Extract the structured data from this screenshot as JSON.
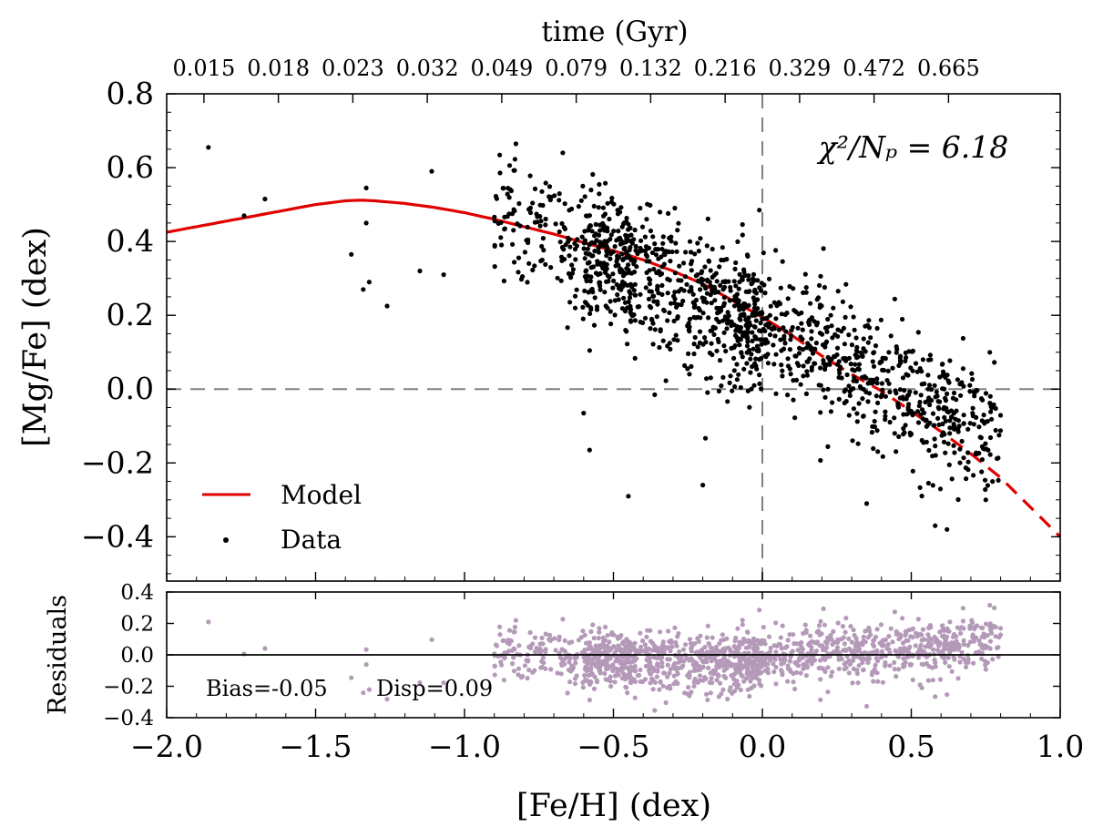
{
  "chart_data": [
    {
      "name": "main-panel",
      "type": "scatter",
      "title": "",
      "xlabel": "[Fe/H] (dex)",
      "ylabel": "[Mg/Fe] (dex)",
      "xlim": [
        -2.0,
        1.0
      ],
      "ylim": [
        -0.52,
        0.8
      ],
      "x_ticks": [
        -2.0,
        -1.5,
        -1.0,
        -0.5,
        0.0,
        0.5,
        1.0
      ],
      "x_tick_labels": [
        "−2.0",
        "−1.5",
        "−1.0",
        "−0.5",
        "0.0",
        "0.5",
        "1.0"
      ],
      "y_ticks": [
        -0.4,
        -0.2,
        0.0,
        0.2,
        0.4,
        0.6,
        0.8
      ],
      "y_tick_labels": [
        "−0.4",
        "−0.2",
        "0.0",
        "0.2",
        "0.4",
        "0.6",
        "0.8"
      ],
      "top_axis": {
        "label": "time (Gyr)",
        "tick_positions_feh": [
          -1.875,
          -1.625,
          -1.375,
          -1.125,
          -0.875,
          -0.625,
          -0.375,
          -0.125,
          0.125,
          0.375,
          0.625
        ],
        "tick_labels": [
          "0.015",
          "0.018",
          "0.023",
          "0.032",
          "0.049",
          "0.079",
          "0.132",
          "0.216",
          "0.329",
          "0.472",
          "0.665"
        ]
      },
      "annotation": "χ²/Nₚ = 6.18",
      "reference_lines": {
        "x": 0.0,
        "y": 0.0,
        "style": "dashed",
        "color": "#808080"
      },
      "legend": {
        "position": "bottom-left",
        "entries": [
          {
            "label": "Model",
            "color": "#e00000",
            "marker": "line"
          },
          {
            "label": "Data",
            "color": "#000000",
            "marker": "dot"
          }
        ]
      },
      "series": [
        {
          "name": "Model",
          "color": "#e00000",
          "solid_until_feh": 0.1,
          "x": [
            -2.0,
            -1.9,
            -1.8,
            -1.7,
            -1.6,
            -1.5,
            -1.4,
            -1.35,
            -1.3,
            -1.2,
            -1.1,
            -1.0,
            -0.9,
            -0.8,
            -0.7,
            -0.6,
            -0.5,
            -0.4,
            -0.3,
            -0.2,
            -0.1,
            0.0,
            0.1,
            0.2,
            0.3,
            0.4,
            0.5,
            0.6,
            0.7,
            0.8,
            0.9,
            1.0
          ],
          "y": [
            0.425,
            0.44,
            0.455,
            0.47,
            0.485,
            0.5,
            0.51,
            0.512,
            0.51,
            0.503,
            0.492,
            0.478,
            0.46,
            0.44,
            0.42,
            0.397,
            0.375,
            0.35,
            0.32,
            0.285,
            0.24,
            0.195,
            0.145,
            0.09,
            0.04,
            -0.005,
            -0.06,
            -0.115,
            -0.175,
            -0.24,
            -0.32,
            -0.4
          ]
        },
        {
          "name": "Data",
          "color": "#000000",
          "outliers": {
            "x": [
              -1.86,
              -1.67,
              -1.74,
              -1.38,
              -1.33,
              -1.33,
              -1.34,
              -1.32,
              -1.26,
              -1.11,
              -1.15,
              -1.07,
              -0.67,
              -0.6,
              -0.58,
              -0.45,
              -0.2,
              -0.01,
              0.35,
              0.58,
              0.62,
              0.75
            ],
            "y": [
              0.655,
              0.515,
              0.47,
              0.365,
              0.545,
              0.45,
              0.27,
              0.29,
              0.225,
              0.59,
              0.32,
              0.31,
              0.64,
              -0.065,
              -0.165,
              -0.29,
              -0.26,
              0.485,
              -0.31,
              -0.37,
              -0.38,
              -0.3
            ]
          },
          "cloud": {
            "count": 1400,
            "feh_range": [
              -0.9,
              0.8
            ],
            "mean_trend": "[Mg/Fe] ≈ 0.16 − 0.36·[Fe/H]",
            "scatter_dex": 0.09
          }
        }
      ]
    },
    {
      "name": "residual-panel",
      "type": "scatter",
      "ylabel": "Residuals",
      "xlim": [
        -2.0,
        1.0
      ],
      "ylim": [
        -0.4,
        0.4
      ],
      "y_ticks": [
        -0.4,
        -0.2,
        0.0,
        0.2,
        0.4
      ],
      "y_tick_labels": [
        "−0.4",
        "−0.2",
        "0.0",
        "0.2",
        "0.4"
      ],
      "color": "#b49ab8",
      "zero_line": 0.0,
      "bias_text": "Bias=-0.05",
      "disp_text": "Disp=0.09",
      "bias": -0.05,
      "dispersion": 0.09
    }
  ]
}
